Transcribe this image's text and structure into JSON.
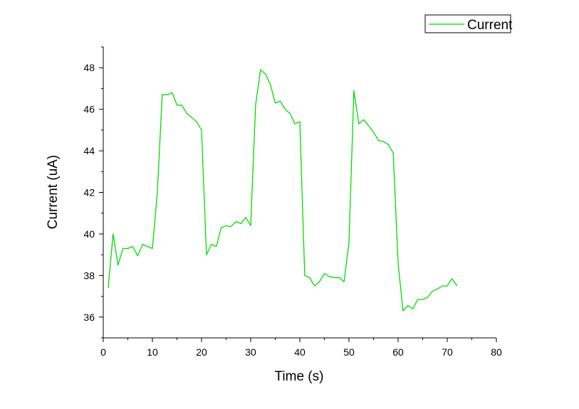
{
  "chart_data": {
    "type": "line",
    "title": "",
    "xlabel": "Time (s)",
    "ylabel": "Current (uA)",
    "xlim": [
      0,
      80
    ],
    "ylim": [
      35,
      49
    ],
    "x_ticks": [
      0,
      10,
      20,
      30,
      40,
      50,
      60,
      70,
      80
    ],
    "y_ticks": [
      36,
      38,
      40,
      42,
      44,
      46,
      48
    ],
    "grid": false,
    "legend_position": "top-right",
    "series": [
      {
        "name": "Current",
        "color": "#00dd00",
        "x": [
          1,
          2,
          3,
          4,
          5,
          6,
          7,
          8,
          9,
          10,
          11,
          12,
          13,
          14,
          15,
          16,
          17,
          18,
          19,
          20,
          21,
          22,
          23,
          24,
          25,
          26,
          27,
          28,
          29,
          30,
          31,
          32,
          33,
          34,
          35,
          36,
          37,
          38,
          39,
          40,
          41,
          42,
          43,
          44,
          45,
          46,
          47,
          48,
          49,
          50,
          51,
          52,
          53,
          54,
          55,
          56,
          57,
          58,
          59,
          60,
          61,
          62,
          63,
          64,
          65,
          66,
          67,
          68,
          69,
          70,
          71,
          72
        ],
        "y": [
          37.4,
          40.0,
          38.5,
          39.3,
          39.3,
          39.4,
          38.95,
          39.5,
          39.4,
          39.3,
          42.0,
          46.7,
          46.7,
          46.8,
          46.2,
          46.2,
          45.8,
          45.6,
          45.4,
          45.0,
          39.0,
          39.5,
          39.4,
          40.3,
          40.4,
          40.35,
          40.6,
          40.5,
          40.8,
          40.4,
          46.2,
          47.9,
          47.7,
          47.2,
          46.3,
          46.4,
          46.0,
          45.8,
          45.3,
          45.4,
          38.0,
          37.9,
          37.5,
          37.7,
          38.1,
          37.95,
          37.9,
          37.9,
          37.7,
          39.6,
          46.9,
          45.3,
          45.5,
          45.2,
          44.9,
          44.5,
          44.45,
          44.3,
          43.9,
          38.6,
          36.3,
          36.55,
          36.4,
          36.85,
          36.85,
          36.95,
          37.25,
          37.35,
          37.5,
          37.5,
          37.85,
          37.5
        ]
      }
    ]
  }
}
